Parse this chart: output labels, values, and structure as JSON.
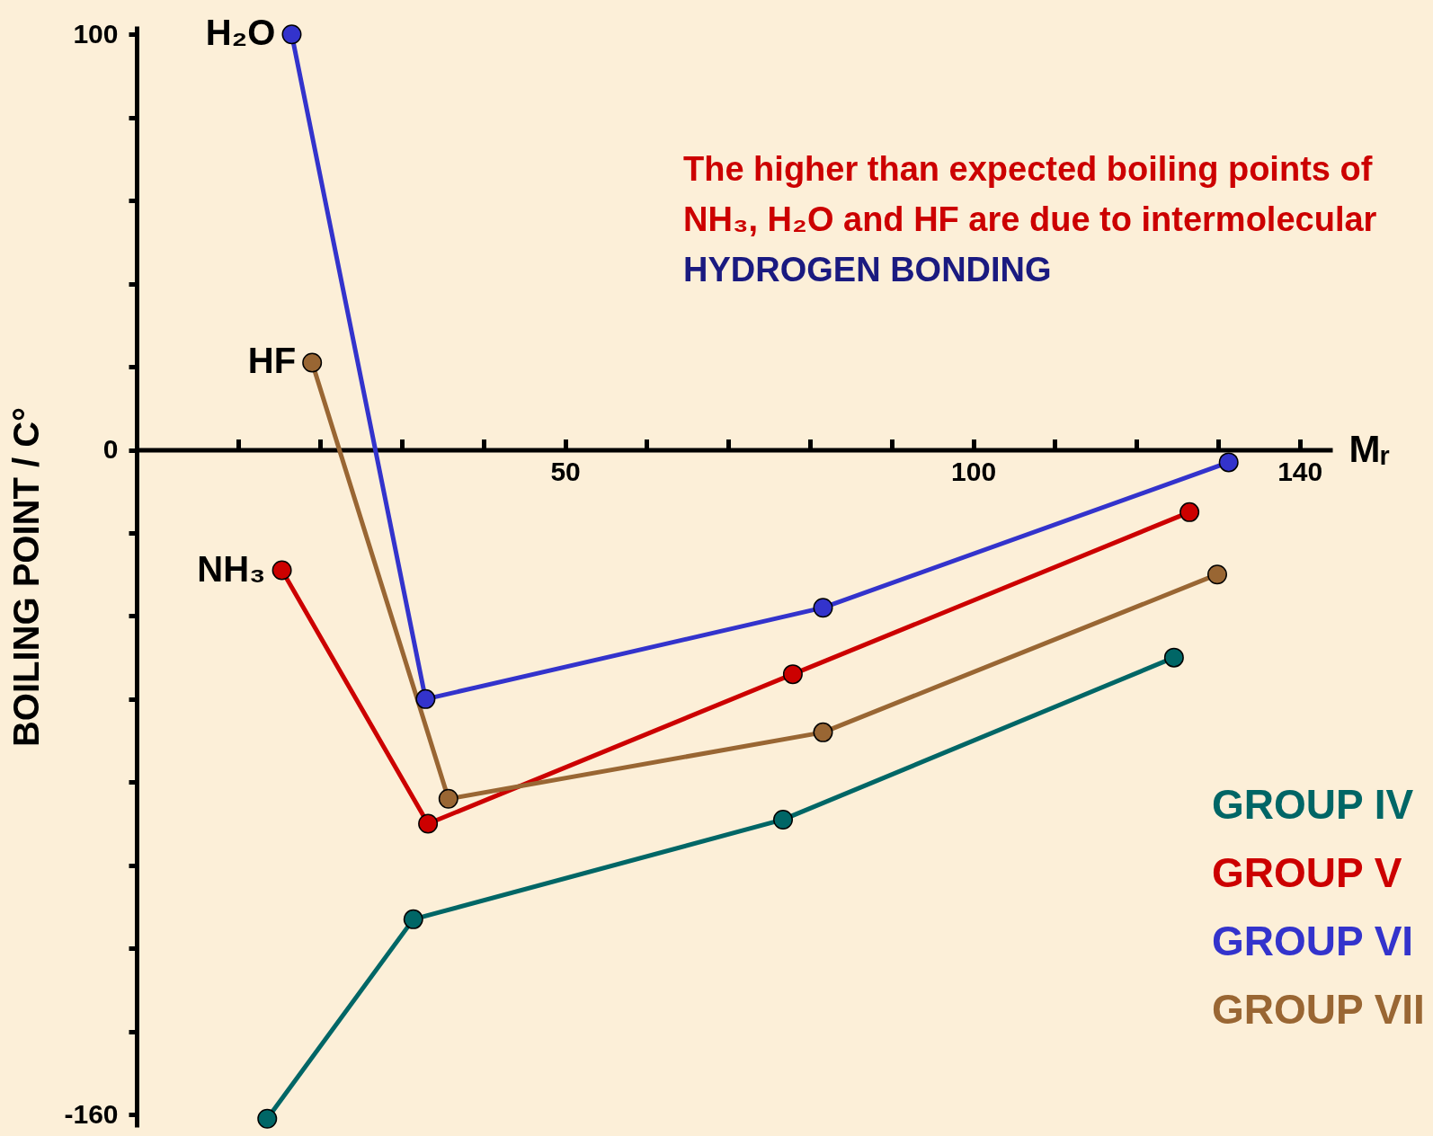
{
  "chart_data": {
    "type": "line",
    "xlabel": "Mᵣ",
    "ylabel": "BOILING POINT / C°",
    "xlim": [
      -2.5,
      144
    ],
    "ylim": [
      -163,
      102
    ],
    "xticks": [
      {
        "value": 10,
        "label": null
      },
      {
        "value": 20,
        "label": null
      },
      {
        "value": 30,
        "label": null
      },
      {
        "value": 40,
        "label": null
      },
      50,
      {
        "value": 60,
        "label": null
      },
      {
        "value": 70,
        "label": null
      },
      {
        "value": 80,
        "label": null
      },
      {
        "value": 90,
        "label": null
      },
      100,
      {
        "value": 110,
        "label": null
      },
      {
        "value": 120,
        "label": null
      },
      {
        "value": 130,
        "label": null
      },
      140
    ],
    "yticks": [
      -160,
      {
        "value": -140,
        "label": null
      },
      {
        "value": -120,
        "label": null
      },
      {
        "value": -100,
        "label": null
      },
      {
        "value": -80,
        "label": null
      },
      {
        "value": -60,
        "label": null
      },
      {
        "value": -40,
        "label": null
      },
      {
        "value": -20,
        "label": null
      },
      0,
      {
        "value": 20,
        "label": null
      },
      {
        "value": 40,
        "label": null
      },
      {
        "value": 60,
        "label": null
      },
      {
        "value": 80,
        "label": null
      },
      100
    ],
    "series": [
      {
        "name": "GROUP IV",
        "color": "#006666",
        "x": [
          13.5,
          31.4,
          76.7,
          124.6
        ],
        "values": [
          -161,
          -113,
          -89,
          -50
        ]
      },
      {
        "name": "GROUP V",
        "color": "#cc0000",
        "x": [
          15.3,
          33.2,
          77.9,
          126.5
        ],
        "values": [
          -29,
          -90,
          -54,
          -15
        ]
      },
      {
        "name": "GROUP VI",
        "color": "#3333cc",
        "x": [
          16.5,
          32.9,
          81.6,
          131.3
        ],
        "values": [
          100,
          -60,
          -38,
          -3
        ]
      },
      {
        "name": "GROUP VII",
        "color": "#996633",
        "x": [
          19,
          35.7,
          81.6,
          129.9
        ],
        "values": [
          21,
          -84,
          -68,
          -30
        ]
      }
    ],
    "annotations": [
      "The higher than expected boiling points of NH₃, H₂O and HF are due to intermolecular",
      "HYDROGEN BONDING",
      {
        "text": "H₂O",
        "x": 16.5,
        "y": 100
      },
      {
        "text": "HF",
        "x": 19,
        "y": 21
      },
      {
        "text": "NH₃",
        "x": 15.3,
        "y": -29
      }
    ],
    "legend": "bottom right",
    "marker": "circle",
    "line_style": "solid",
    "grid": false
  }
}
